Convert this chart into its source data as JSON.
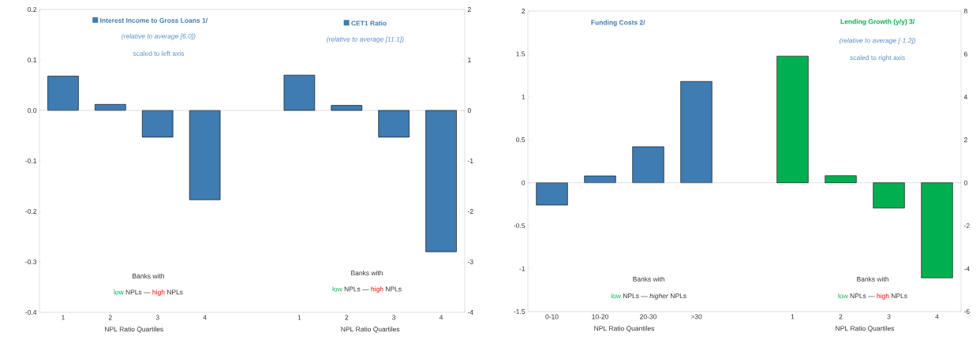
{
  "chart_data": [
    {
      "type": "bar",
      "categories": [
        "1",
        "2",
        "3",
        "4",
        null,
        "1",
        "2",
        "3",
        "4"
      ],
      "xlabel": "NPL Ratio Quartiles",
      "legend": "top",
      "ylim": [
        -0.4,
        0.2
      ],
      "yticks": [
        -0.4,
        -0.3,
        -0.2,
        -0.1,
        {
          "value": 0,
          "label": "0.0"
        },
        0.1,
        0.2
      ],
      "y2lim": [
        -4,
        2
      ],
      "y2ticks": [
        -4,
        -3,
        -2,
        -1,
        0,
        1,
        2
      ],
      "series": [
        {
          "name": "Interest Income to Gross Loans 1/",
          "color": "#3e7cb1",
          "values": [
            0.068,
            0.012,
            -0.053,
            -0.177,
            null,
            null,
            null,
            null,
            null
          ]
        },
        {
          "name": "CET1 Ratio",
          "color": "#3e7cb1",
          "axis": "y2",
          "values": [
            null,
            null,
            null,
            null,
            null,
            0.7,
            0.1,
            -0.53,
            -2.8
          ]
        }
      ],
      "annotations": [
        "(relative to average [6.0])",
        "scaled to left axis",
        "(relative to average [11.1])",
        "Banks with",
        "low",
        "NPLs —",
        "high",
        "NPLs",
        "Banks with",
        "low",
        "NPLs —",
        "high",
        "NPLs",
        "NPL Ratio Quartiles"
      ]
    },
    {
      "type": "bar",
      "categories": [
        "0-10",
        "10-20",
        "20-30",
        ">30",
        null,
        "1",
        "2",
        "3",
        "4"
      ],
      "xlabel": "NPL Ratio Quantiles",
      "ylim": [
        -1.5,
        2
      ],
      "yticks": [
        -1.5,
        -1,
        -0.5,
        0,
        0.5,
        1,
        1.5,
        2
      ],
      "y2lim": [
        -6,
        8
      ],
      "y2ticks": [
        -6,
        -4,
        -2,
        0,
        2,
        4,
        6,
        8
      ],
      "series": [
        {
          "name": "Funding Costs 2/",
          "color": "#3e7cb1",
          "values": [
            -0.26,
            0.08,
            0.42,
            1.18,
            null,
            null,
            null,
            null,
            null
          ]
        },
        {
          "name": "Lending Growth (y/y) 3/",
          "color": "#00b050",
          "axis": "y2",
          "values": [
            null,
            null,
            null,
            null,
            null,
            5.9,
            0.33,
            -1.18,
            -4.43
          ]
        }
      ],
      "annotations": [
        "(relative to average [-1.2])",
        "scaled to right axis",
        "Banks with",
        "low",
        "NPLs — *higher* NPLs",
        "Banks with",
        "low",
        "NPLs —",
        "high",
        "NPLs",
        "NPL Ratio Quartiles"
      ]
    }
  ]
}
